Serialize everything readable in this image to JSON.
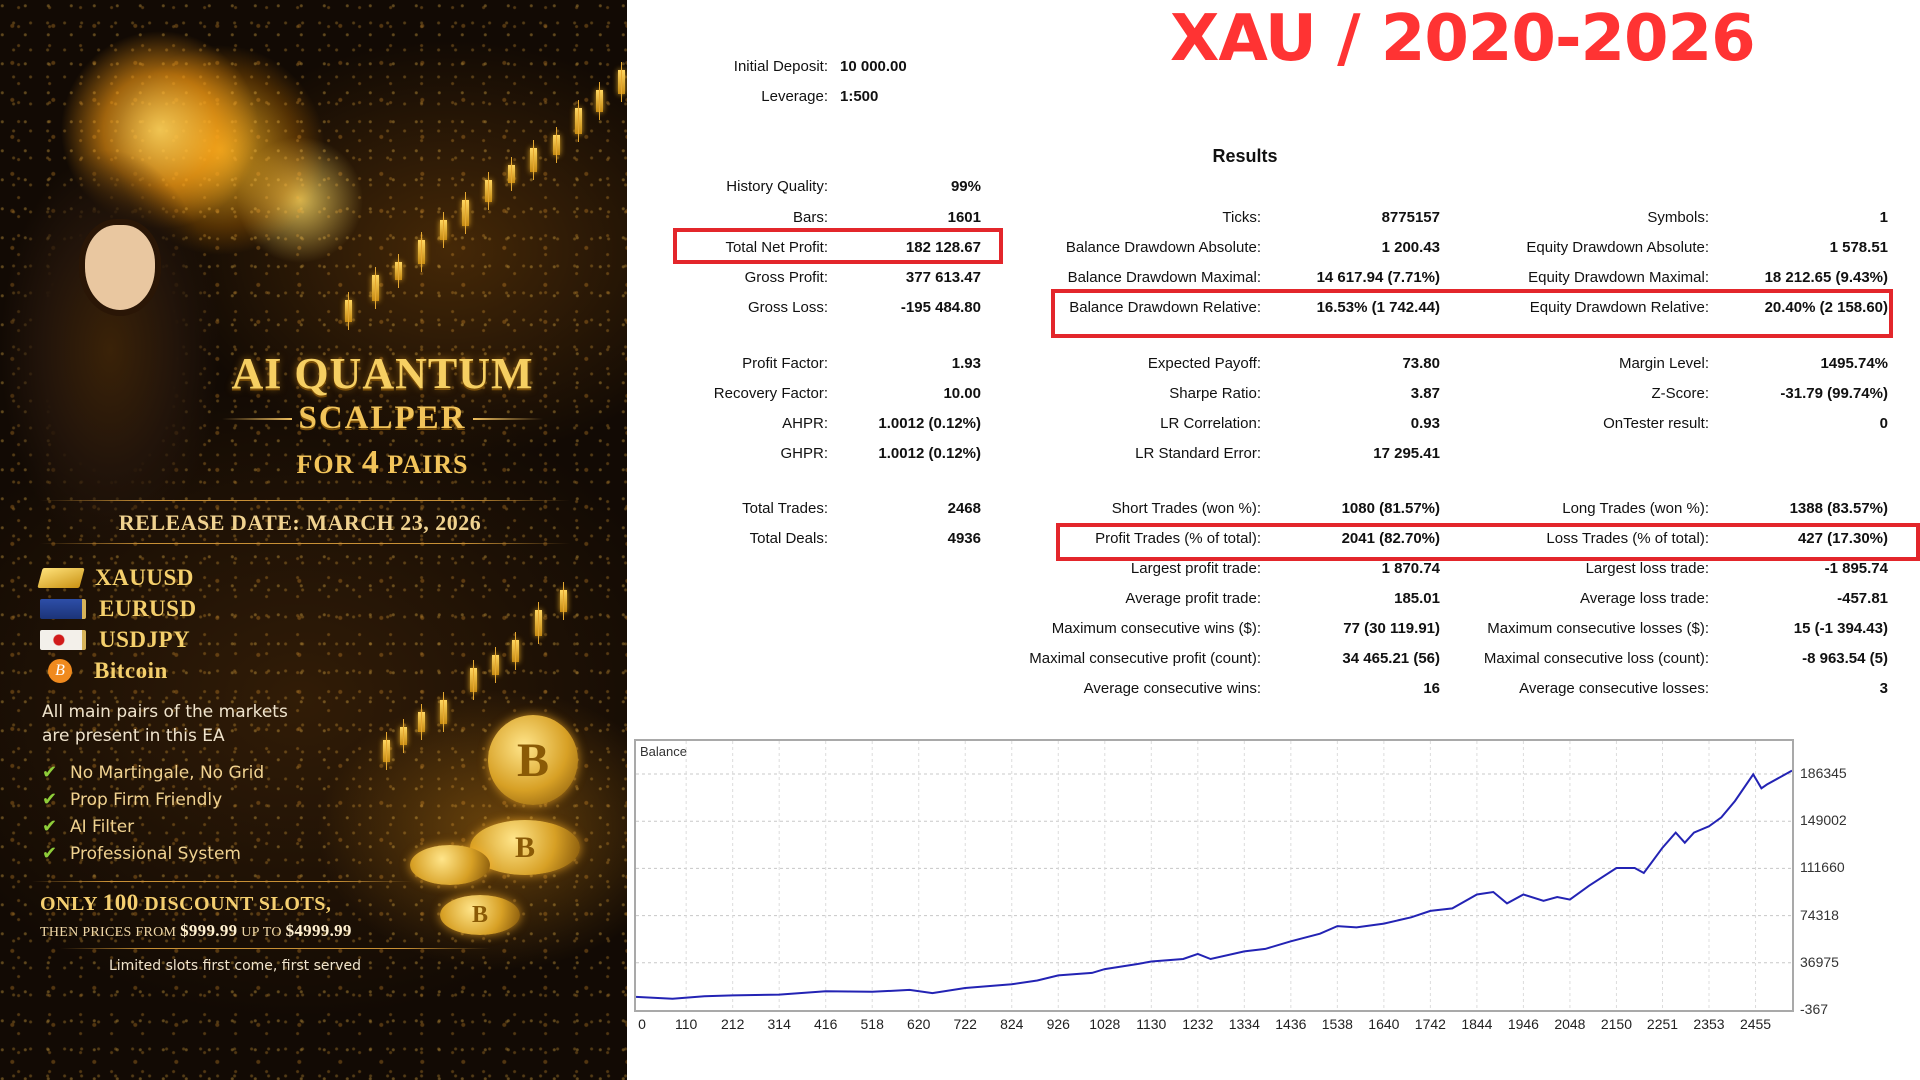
{
  "promo": {
    "title_line1": "AI QUANTUM",
    "title_line2": "SCALPER",
    "title_line3_pre": "FOR ",
    "title_line3_num": "4",
    "title_line3_post": " PAIRS",
    "release_date": "RELEASE DATE: MARCH 23, 2026",
    "pairs": [
      {
        "label": "XAUUSD",
        "icon": "gold-bar-icon"
      },
      {
        "label": "EURUSD",
        "icon": "eu-flag-icon"
      },
      {
        "label": "USDJPY",
        "icon": "japan-flag-icon"
      },
      {
        "label": "Bitcoin",
        "icon": "bitcoin-icon",
        "glyph": "B"
      }
    ],
    "description_line1": "All main pairs of the markets",
    "description_line2": "are present in this EA",
    "check_glyph": "✔",
    "features": [
      "No Martingale, No Grid",
      "Prop Firm Friendly",
      "AI Filter",
      "Professional System"
    ],
    "slots_pre": "ONLY ",
    "slots_num": "100",
    "slots_post": " DISCOUNT SLOTS,",
    "prices_pre": "THEN PRICES FROM ",
    "price_low": "$999.99",
    "prices_mid": " UP TO ",
    "price_high": "$4999.99",
    "limited": "Limited slots first come, first served",
    "coin_glyph": "B"
  },
  "report": {
    "title": "XAU / 2020-2026",
    "title_color": "#ff3333",
    "highlight_color": "#e3262b",
    "settings": [
      {
        "label": "Initial Deposit:",
        "value": "10 000.00"
      },
      {
        "label": "Leverage:",
        "value": "1:500"
      }
    ],
    "results_heading": "Results",
    "col1": [
      {
        "label": "History Quality:",
        "value": "99%"
      },
      {
        "label": "Bars:",
        "value": "1601"
      },
      {
        "label": "Total Net Profit:",
        "value": "182 128.67"
      },
      {
        "label": "Gross Profit:",
        "value": "377 613.47"
      },
      {
        "label": "Gross Loss:",
        "value": "-195 484.80"
      },
      {
        "label": "Profit Factor:",
        "value": "1.93"
      },
      {
        "label": "Recovery Factor:",
        "value": "10.00"
      },
      {
        "label": "AHPR:",
        "value": "1.0012 (0.12%)"
      },
      {
        "label": "GHPR:",
        "value": "1.0012 (0.12%)"
      },
      {
        "label": "Total Trades:",
        "value": "2468"
      },
      {
        "label": "Total Deals:",
        "value": "4936"
      }
    ],
    "col2": [
      {
        "label": "Ticks:",
        "value": "8775157"
      },
      {
        "label": "Balance Drawdown Absolute:",
        "value": "1 200.43"
      },
      {
        "label": "Balance Drawdown Maximal:",
        "value": "14 617.94 (7.71%)"
      },
      {
        "label": "Balance Drawdown Relative:",
        "value": "16.53% (1 742.44)"
      },
      {
        "label": "Expected Payoff:",
        "value": "73.80"
      },
      {
        "label": "Sharpe Ratio:",
        "value": "3.87"
      },
      {
        "label": "LR Correlation:",
        "value": "0.93"
      },
      {
        "label": "LR Standard Error:",
        "value": "17 295.41"
      },
      {
        "label": "Short Trades (won %):",
        "value": "1080 (81.57%)"
      },
      {
        "label": "Profit Trades (% of total):",
        "value": "2041 (82.70%)"
      },
      {
        "label": "Largest profit trade:",
        "value": "1 870.74"
      },
      {
        "label": "Average profit trade:",
        "value": "185.01"
      },
      {
        "label": "Maximum consecutive wins ($):",
        "value": "77 (30 119.91)"
      },
      {
        "label": "Maximal consecutive profit (count):",
        "value": "34 465.21 (56)"
      },
      {
        "label": "Average consecutive wins:",
        "value": "16"
      }
    ],
    "col3": [
      {
        "label": "Symbols:",
        "value": "1"
      },
      {
        "label": "Equity Drawdown Absolute:",
        "value": "1 578.51"
      },
      {
        "label": "Equity Drawdown Maximal:",
        "value": "18 212.65 (9.43%)"
      },
      {
        "label": "Equity Drawdown Relative:",
        "value": "20.40% (2 158.60)"
      },
      {
        "label": "Margin Level:",
        "value": "1495.74%"
      },
      {
        "label": "Z-Score:",
        "value": "-31.79 (99.74%)"
      },
      {
        "label": "OnTester result:",
        "value": "0"
      },
      {
        "label": "Long Trades (won %):",
        "value": "1388 (83.57%)"
      },
      {
        "label": "Loss Trades (% of total):",
        "value": "427 (17.30%)"
      },
      {
        "label": "Largest loss trade:",
        "value": "-1 895.74"
      },
      {
        "label": "Average loss trade:",
        "value": "-457.81"
      },
      {
        "label": "Maximum consecutive losses ($):",
        "value": "15 (-1 394.43)"
      },
      {
        "label": "Maximal consecutive loss (count):",
        "value": "-8 963.54 (5)"
      },
      {
        "label": "Average consecutive losses:",
        "value": "3"
      }
    ]
  },
  "chart_data": {
    "type": "line",
    "title": "Balance",
    "xlabel": "",
    "ylabel": "",
    "line_color": "#2323b4",
    "grid": true,
    "x_ticks": [
      "0",
      "110",
      "212",
      "314",
      "416",
      "518",
      "620",
      "722",
      "824",
      "926",
      "1028",
      "1130",
      "1232",
      "1334",
      "1436",
      "1538",
      "1640",
      "1742",
      "1844",
      "1946",
      "2048",
      "2150",
      "2251",
      "2353",
      "2455"
    ],
    "y_ticks": [
      "186345",
      "149002",
      "111660",
      "74318",
      "36975",
      "-367"
    ],
    "ylim": [
      -367,
      200000
    ],
    "xlim": [
      0,
      2468
    ],
    "series": [
      {
        "name": "Balance",
        "x": [
          0,
          80,
          150,
          212,
          314,
          416,
          518,
          600,
          650,
          722,
          824,
          880,
          926,
          1000,
          1028,
          1100,
          1130,
          1200,
          1232,
          1260,
          1334,
          1380,
          1436,
          1500,
          1538,
          1580,
          1640,
          1700,
          1742,
          1790,
          1844,
          1880,
          1910,
          1946,
          1990,
          2020,
          2048,
          2090,
          2150,
          2190,
          2210,
          2251,
          2280,
          2300,
          2320,
          2353,
          2380,
          2410,
          2450,
          2468,
          2480,
          2520,
          2535
        ],
        "y": [
          10000,
          8500,
          10500,
          11200,
          11800,
          14500,
          14000,
          15500,
          13000,
          17000,
          20000,
          23000,
          27000,
          29000,
          32000,
          36000,
          38000,
          40000,
          44000,
          40000,
          46000,
          48000,
          54000,
          60000,
          66000,
          65000,
          68000,
          73000,
          78000,
          80000,
          91000,
          93000,
          84000,
          91000,
          86000,
          89000,
          87000,
          98000,
          112000,
          112000,
          108000,
          128000,
          140000,
          132000,
          140000,
          145000,
          152000,
          165000,
          186000,
          175000,
          178000,
          186000,
          189000
        ]
      }
    ]
  }
}
